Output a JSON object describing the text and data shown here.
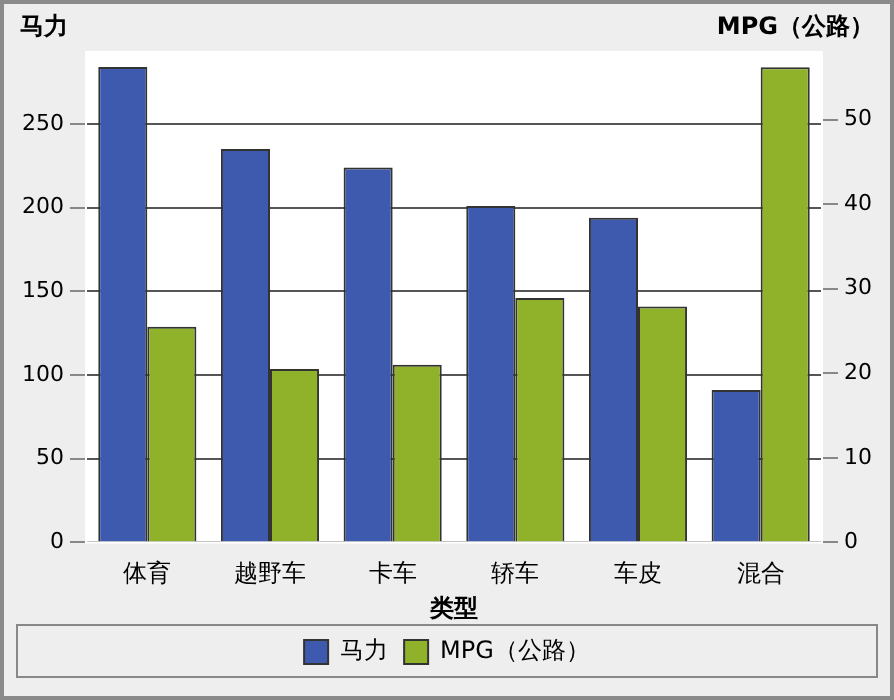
{
  "chart_data": {
    "type": "bar",
    "xlabel": "类型",
    "ylabel": "马力",
    "y2label": "MPG（公路）",
    "categories": [
      "体育",
      "越野车",
      "卡车",
      "轿车",
      "车皮",
      "混合"
    ],
    "series": [
      {
        "name": "马力",
        "color": "#3d5aae",
        "values": [
          284,
          235,
          224,
          201,
          194,
          91
        ]
      },
      {
        "name": "MPG（公路）",
        "color": "#8fb22a",
        "axis": "y2",
        "values": [
          25.5,
          20.5,
          21,
          28.9,
          27.9,
          56.2
        ]
      }
    ],
    "ylim": [
      0,
      293
    ],
    "yticks": [
      0,
      50,
      100,
      150,
      200,
      250
    ],
    "y2lim": [
      0,
      58
    ],
    "y2ticks": [
      0,
      10,
      20,
      30,
      40,
      50
    ],
    "grid": "y",
    "legend": "bottom"
  }
}
